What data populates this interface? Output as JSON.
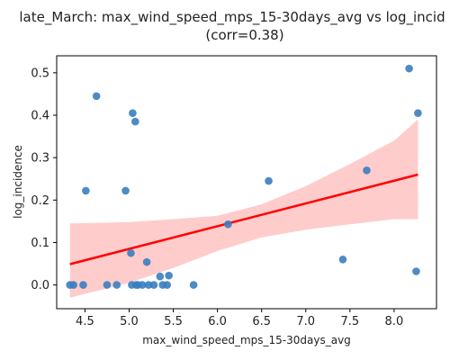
{
  "chart_data": {
    "type": "scatter",
    "title": "late_March: max_wind_speed_mps_15-30days_avg vs log_incid",
    "subtitle": "(corr=0.38)",
    "xlabel": "max_wind_speed_mps_15-30days_avg",
    "ylabel": "log_incidence",
    "xlim": [
      4.18,
      8.48
    ],
    "ylim": [
      -0.056,
      0.54
    ],
    "x_ticks": [
      "4.5",
      "5.0",
      "5.5",
      "6.0",
      "6.5",
      "7.0",
      "7.5",
      "8.0"
    ],
    "y_ticks": [
      "0.0",
      "0.1",
      "0.2",
      "0.3",
      "0.4",
      "0.5"
    ],
    "grid": false,
    "colors": {
      "points": "#3a7ebf",
      "regression_line": "#ff0000",
      "confidence_band": "#ffcccc"
    },
    "points": [
      {
        "x": 4.33,
        "y": 0.0
      },
      {
        "x": 4.37,
        "y": 0.0
      },
      {
        "x": 4.48,
        "y": 0.0
      },
      {
        "x": 4.51,
        "y": 0.222
      },
      {
        "x": 4.63,
        "y": 0.445
      },
      {
        "x": 4.75,
        "y": 0.0
      },
      {
        "x": 4.86,
        "y": 0.0
      },
      {
        "x": 4.96,
        "y": 0.222
      },
      {
        "x": 5.02,
        "y": 0.075
      },
      {
        "x": 5.03,
        "y": 0.0
      },
      {
        "x": 5.04,
        "y": 0.405
      },
      {
        "x": 5.07,
        "y": 0.385
      },
      {
        "x": 5.08,
        "y": 0.0
      },
      {
        "x": 5.1,
        "y": 0.0
      },
      {
        "x": 5.15,
        "y": 0.0
      },
      {
        "x": 5.2,
        "y": 0.054
      },
      {
        "x": 5.22,
        "y": 0.0
      },
      {
        "x": 5.28,
        "y": 0.0
      },
      {
        "x": 5.35,
        "y": 0.02
      },
      {
        "x": 5.38,
        "y": 0.0
      },
      {
        "x": 5.43,
        "y": 0.0
      },
      {
        "x": 5.45,
        "y": 0.022
      },
      {
        "x": 5.73,
        "y": 0.0
      },
      {
        "x": 6.12,
        "y": 0.143
      },
      {
        "x": 6.58,
        "y": 0.245
      },
      {
        "x": 7.42,
        "y": 0.06
      },
      {
        "x": 7.69,
        "y": 0.27
      },
      {
        "x": 8.17,
        "y": 0.51
      },
      {
        "x": 8.25,
        "y": 0.032
      },
      {
        "x": 8.27,
        "y": 0.405
      }
    ],
    "regression": {
      "x": [
        4.33,
        8.27
      ],
      "y": [
        0.049,
        0.26
      ]
    },
    "confidence_band": {
      "x": [
        4.33,
        5.0,
        5.5,
        6.0,
        6.5,
        7.0,
        7.5,
        8.0,
        8.27
      ],
      "upper": [
        0.145,
        0.148,
        0.155,
        0.163,
        0.19,
        0.233,
        0.285,
        0.34,
        0.39
      ],
      "lower": [
        -0.03,
        0.005,
        0.04,
        0.08,
        0.112,
        0.13,
        0.143,
        0.155,
        0.155
      ]
    }
  }
}
